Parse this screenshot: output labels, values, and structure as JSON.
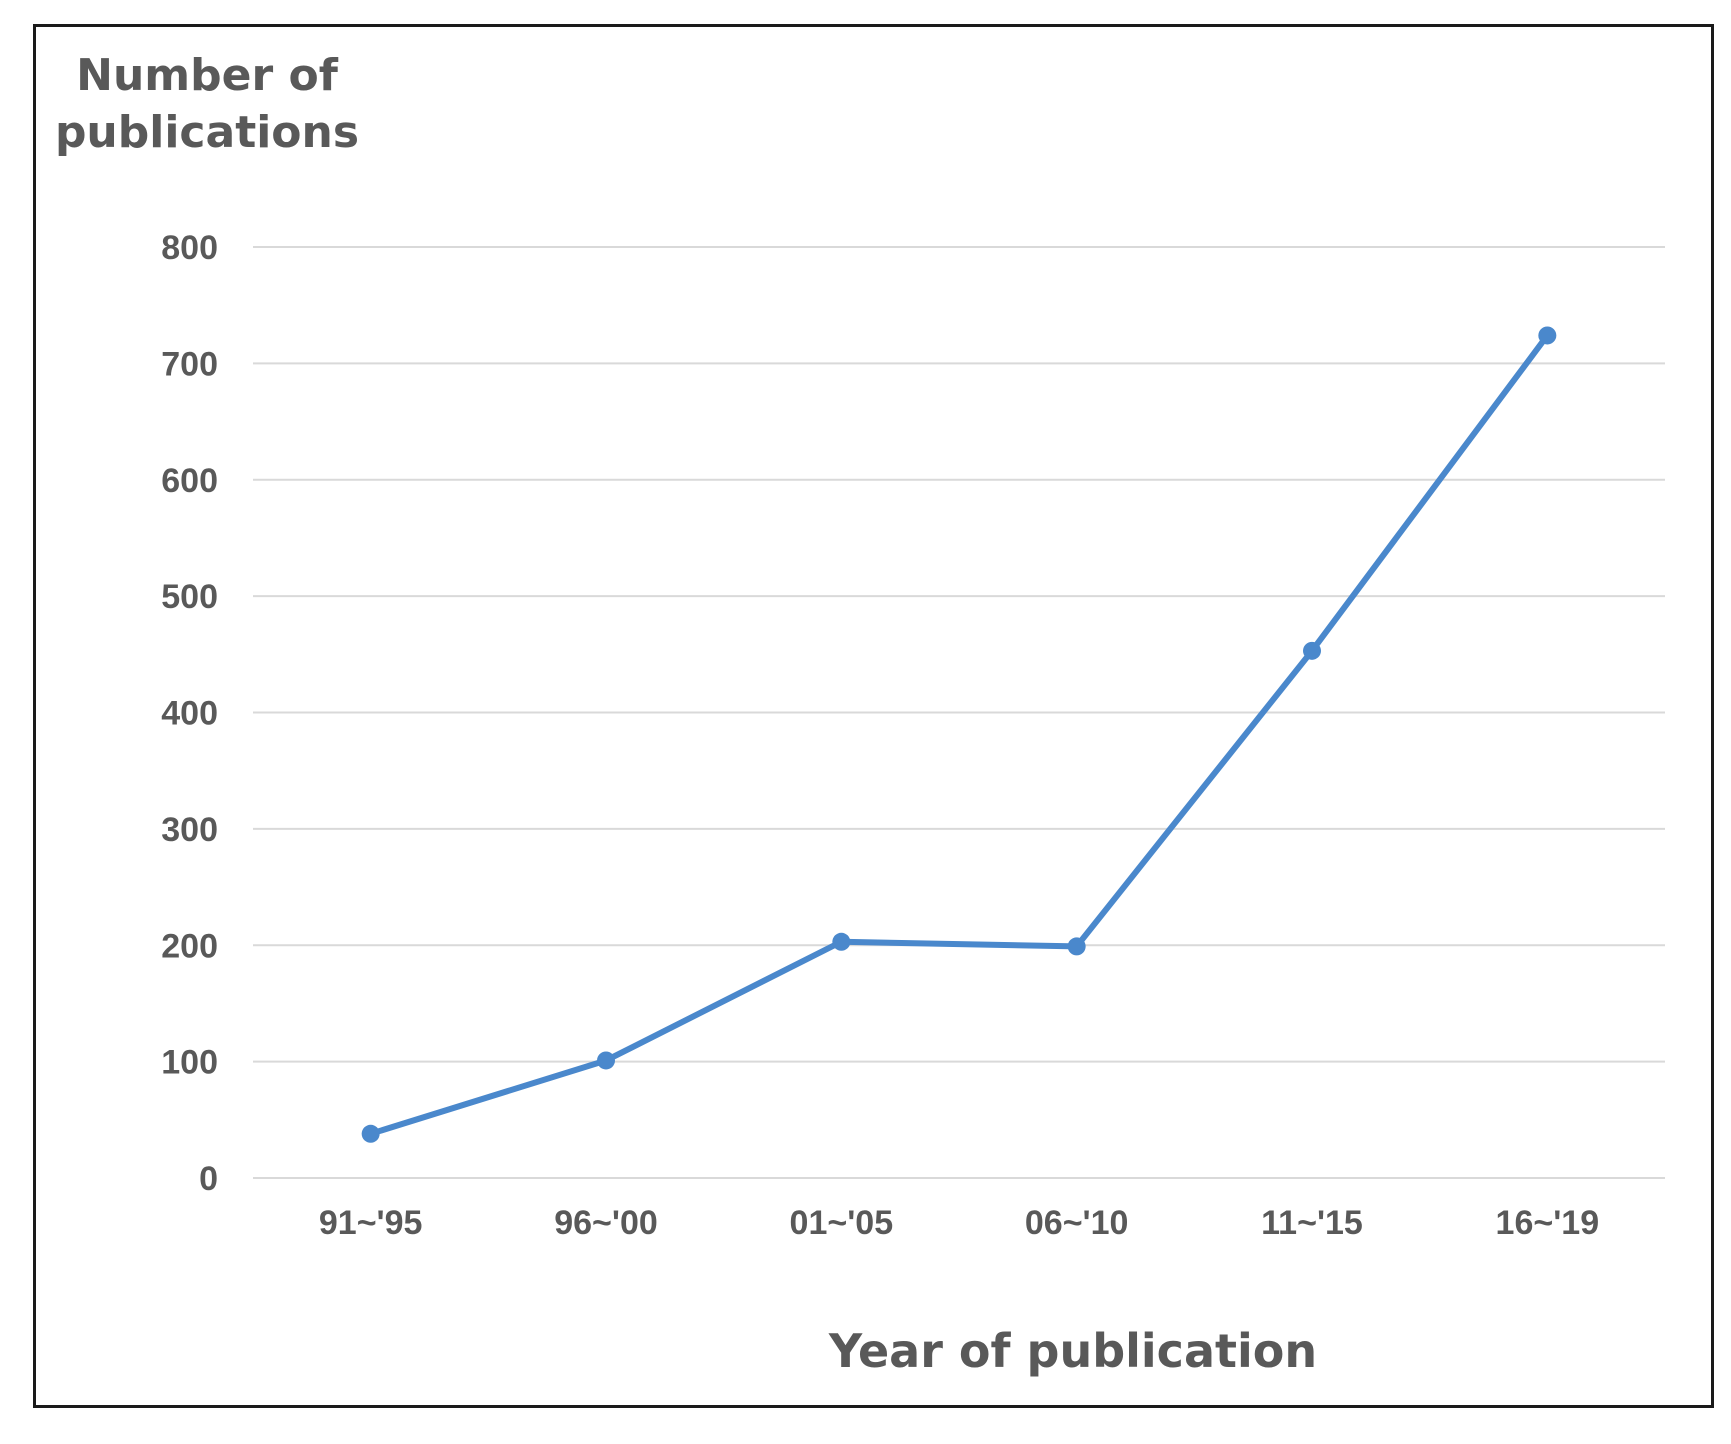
{
  "chart_data": {
    "type": "line",
    "categories": [
      "91~'95",
      "96~'00",
      "01~'05",
      "06~'10",
      "11~'15",
      "16~'19"
    ],
    "series": [
      {
        "values": [
          38,
          101,
          203,
          199,
          453,
          724
        ]
      }
    ],
    "ylabel_lines": [
      "Number of",
      "publications"
    ],
    "xlabel": "Year of publication",
    "ylim": [
      0,
      800
    ],
    "yticks": [
      "0",
      "100",
      "200",
      "300",
      "400",
      "500",
      "600",
      "700",
      "800"
    ],
    "grid": true,
    "legend": "none",
    "colors": {
      "line": "#4a88cc",
      "grid": "#d9d9d9",
      "text": "#595959",
      "border": "#1a1a1a"
    }
  }
}
